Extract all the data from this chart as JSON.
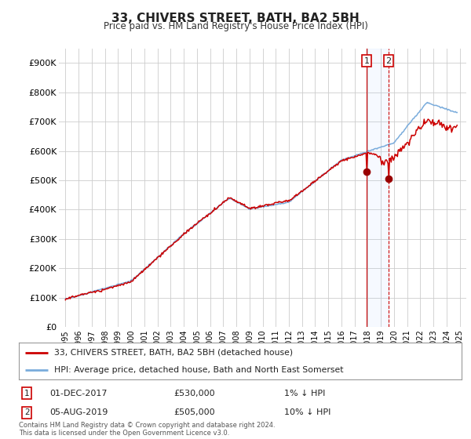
{
  "title": "33, CHIVERS STREET, BATH, BA2 5BH",
  "subtitle": "Price paid vs. HM Land Registry's House Price Index (HPI)",
  "yticks": [
    0,
    100000,
    200000,
    300000,
    400000,
    500000,
    600000,
    700000,
    800000,
    900000
  ],
  "ytick_labels": [
    "£0",
    "£100K",
    "£200K",
    "£300K",
    "£400K",
    "£500K",
    "£600K",
    "£700K",
    "£800K",
    "£900K"
  ],
  "xmin": 1994.5,
  "xmax": 2025.5,
  "ymin": 0,
  "ymax": 950000,
  "legend_label1": "33, CHIVERS STREET, BATH, BA2 5BH (detached house)",
  "legend_label2": "HPI: Average price, detached house, Bath and North East Somerset",
  "sale1_date": "01-DEC-2017",
  "sale1_price": "£530,000",
  "sale1_hpi": "1% ↓ HPI",
  "sale2_date": "05-AUG-2019",
  "sale2_price": "£505,000",
  "sale2_hpi": "10% ↓ HPI",
  "footer": "Contains HM Land Registry data © Crown copyright and database right 2024.\nThis data is licensed under the Open Government Licence v3.0.",
  "line_color_red": "#cc0000",
  "line_color_blue": "#7aacdc",
  "vline1_x": 2017.92,
  "vline2_x": 2019.59,
  "sale1_marker_y": 530000,
  "sale2_marker_y": 505000,
  "background_color": "#ffffff",
  "grid_color": "#cccccc"
}
